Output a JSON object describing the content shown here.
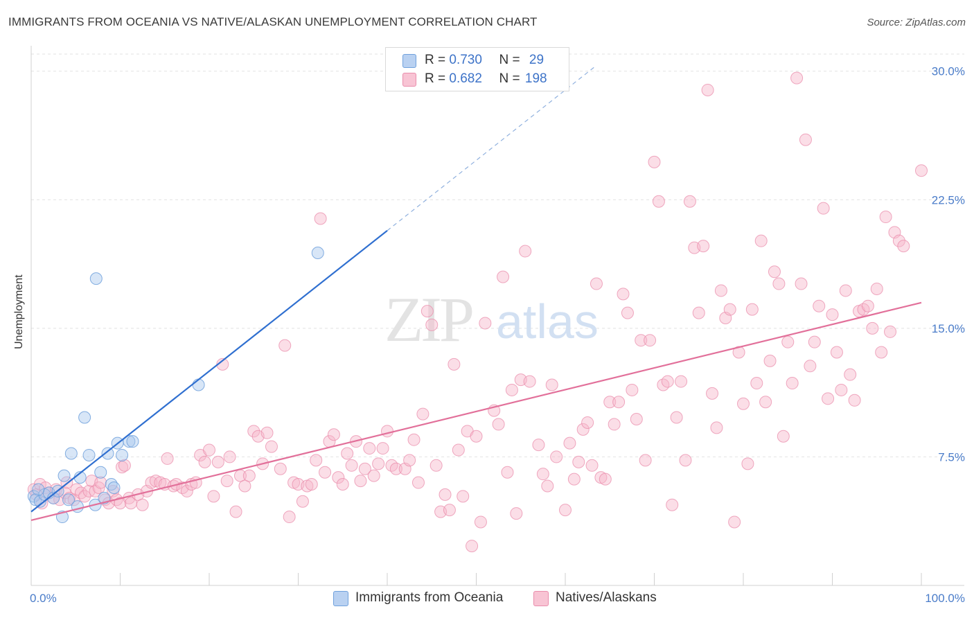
{
  "title": "IMMIGRANTS FROM OCEANIA VS NATIVE/ALASKAN UNEMPLOYMENT CORRELATION CHART",
  "source": "Source: ZipAtlas.com",
  "watermark": {
    "zip": "ZIP",
    "atlas": "atlas"
  },
  "legend": {
    "rows": [
      {
        "r_label": "R =",
        "r_value": "0.730",
        "n_label": "N =",
        "n_value": "29"
      },
      {
        "r_label": "R =",
        "r_value": "0.682",
        "n_label": "N =",
        "n_value": "198"
      }
    ]
  },
  "chart_data": {
    "type": "scatter",
    "title": "IMMIGRANTS FROM OCEANIA VS NATIVE/ALASKAN UNEMPLOYMENT CORRELATION CHART",
    "xlabel": "",
    "ylabel": "Unemployment",
    "xlim": [
      0,
      100
    ],
    "ylim": [
      0,
      31
    ],
    "x_tick_labels": [
      "0.0%",
      "100.0%"
    ],
    "y_ticks": [
      7.5,
      15.0,
      22.5,
      30.0
    ],
    "y_tick_labels": [
      "7.5%",
      "15.0%",
      "22.5%",
      "30.0%"
    ],
    "grid": true,
    "series": [
      {
        "name": "Immigrants from Oceania",
        "color": "#6fa0dc",
        "fill": "#a9c8ee",
        "R": 0.73,
        "N": 29,
        "trendline": {
          "x0": 0,
          "y0": 4.3,
          "x1": 40,
          "y1": 20.7,
          "dashed_to_x": 63.5
        },
        "points": [
          [
            0.3,
            5.2
          ],
          [
            0.5,
            5.0
          ],
          [
            1,
            4.9
          ],
          [
            1.5,
            5.3
          ],
          [
            2,
            5.4
          ],
          [
            2.5,
            5.1
          ],
          [
            3,
            5.5
          ],
          [
            3.5,
            4.0
          ],
          [
            3.7,
            6.4
          ],
          [
            4.2,
            5.0
          ],
          [
            4.5,
            7.7
          ],
          [
            5.2,
            4.6
          ],
          [
            5.5,
            6.3
          ],
          [
            6,
            9.8
          ],
          [
            6.5,
            7.6
          ],
          [
            7.2,
            4.7
          ],
          [
            7.3,
            17.9
          ],
          [
            7.8,
            6.6
          ],
          [
            8.2,
            5.1
          ],
          [
            8.6,
            7.7
          ],
          [
            9,
            5.9
          ],
          [
            9.3,
            5.7
          ],
          [
            9.7,
            8.3
          ],
          [
            10.2,
            7.6
          ],
          [
            11,
            8.4
          ],
          [
            11.4,
            8.4
          ],
          [
            18.8,
            11.7
          ],
          [
            32.2,
            19.4
          ],
          [
            0.8,
            5.6
          ]
        ]
      },
      {
        "name": "Natives/Alaskans",
        "color": "#e98cab",
        "fill": "#f6b6ca",
        "R": 0.682,
        "N": 198,
        "trendline": {
          "x0": 0,
          "y0": 3.8,
          "x1": 100,
          "y1": 16.5
        },
        "points": [
          [
            0.3,
            5.6
          ],
          [
            0.6,
            5.3
          ],
          [
            1,
            5.9
          ],
          [
            1.2,
            4.8
          ],
          [
            1.6,
            5.7
          ],
          [
            2,
            5.4
          ],
          [
            2.5,
            5.1
          ],
          [
            2.8,
            5.6
          ],
          [
            3.2,
            5.0
          ],
          [
            3.8,
            5.4
          ],
          [
            4,
            6.0
          ],
          [
            4.3,
            5.1
          ],
          [
            4.8,
            5.0
          ],
          [
            5.1,
            5.6
          ],
          [
            5.6,
            5.4
          ],
          [
            6,
            5.2
          ],
          [
            6.5,
            5.5
          ],
          [
            6.8,
            6.1
          ],
          [
            7.2,
            5.5
          ],
          [
            7.6,
            5.7
          ],
          [
            7.8,
            6.0
          ],
          [
            8.3,
            5.0
          ],
          [
            8.7,
            4.8
          ],
          [
            9.2,
            5.5
          ],
          [
            9.6,
            5.0
          ],
          [
            10,
            4.8
          ],
          [
            10.2,
            6.9
          ],
          [
            10.5,
            7.0
          ],
          [
            11,
            5.1
          ],
          [
            11.2,
            4.8
          ],
          [
            12,
            5.3
          ],
          [
            12.5,
            4.7
          ],
          [
            13,
            5.5
          ],
          [
            13.5,
            6.0
          ],
          [
            14,
            6.1
          ],
          [
            14.5,
            6.0
          ],
          [
            15,
            5.9
          ],
          [
            15.3,
            7.4
          ],
          [
            16,
            5.8
          ],
          [
            16.3,
            5.9
          ],
          [
            17,
            5.7
          ],
          [
            17.5,
            5.5
          ],
          [
            18,
            5.9
          ],
          [
            18.5,
            6.0
          ],
          [
            19,
            7.6
          ],
          [
            19.5,
            7.2
          ],
          [
            20,
            7.9
          ],
          [
            20.5,
            5.2
          ],
          [
            21,
            7.2
          ],
          [
            21.5,
            12.9
          ],
          [
            22,
            6.1
          ],
          [
            22.3,
            7.5
          ],
          [
            23,
            4.3
          ],
          [
            23.5,
            6.4
          ],
          [
            24,
            5.8
          ],
          [
            24.5,
            6.4
          ],
          [
            25,
            9.0
          ],
          [
            25.5,
            8.7
          ],
          [
            26,
            7.1
          ],
          [
            26.5,
            8.9
          ],
          [
            27,
            8.1
          ],
          [
            28,
            6.8
          ],
          [
            28.5,
            14.0
          ],
          [
            29,
            4.0
          ],
          [
            29.5,
            6.0
          ],
          [
            30,
            5.9
          ],
          [
            30.5,
            4.9
          ],
          [
            31,
            5.8
          ],
          [
            31.5,
            5.9
          ],
          [
            32,
            7.3
          ],
          [
            32.5,
            21.4
          ],
          [
            33,
            6.6
          ],
          [
            33.5,
            8.4
          ],
          [
            34,
            8.8
          ],
          [
            34.5,
            6.3
          ],
          [
            35,
            5.9
          ],
          [
            35.5,
            7.7
          ],
          [
            36,
            7.0
          ],
          [
            36.5,
            8.4
          ],
          [
            37,
            6.1
          ],
          [
            37.5,
            6.8
          ],
          [
            38,
            8.0
          ],
          [
            38.5,
            6.4
          ],
          [
            39,
            7.1
          ],
          [
            39.5,
            8.0
          ],
          [
            40,
            9.0
          ],
          [
            40.5,
            7.0
          ],
          [
            41,
            6.8
          ],
          [
            42,
            6.8
          ],
          [
            42.5,
            7.3
          ],
          [
            43,
            8.5
          ],
          [
            43.5,
            6.0
          ],
          [
            44,
            10.0
          ],
          [
            44.5,
            16.0
          ],
          [
            45,
            15.2
          ],
          [
            45.5,
            7.0
          ],
          [
            46,
            4.3
          ],
          [
            46.5,
            5.3
          ],
          [
            47,
            4.4
          ],
          [
            47.5,
            12.9
          ],
          [
            48,
            7.9
          ],
          [
            48.5,
            5.2
          ],
          [
            49,
            9.0
          ],
          [
            49.5,
            2.3
          ],
          [
            50,
            8.7
          ],
          [
            50.5,
            3.7
          ],
          [
            51,
            15.3
          ],
          [
            52,
            10.2
          ],
          [
            52.5,
            9.4
          ],
          [
            53,
            18.0
          ],
          [
            53.5,
            6.6
          ],
          [
            54,
            11.4
          ],
          [
            54.5,
            4.2
          ],
          [
            55,
            12.0
          ],
          [
            55.5,
            19.5
          ],
          [
            56,
            11.9
          ],
          [
            57,
            8.2
          ],
          [
            57.5,
            6.5
          ],
          [
            58,
            5.8
          ],
          [
            58.5,
            11.7
          ],
          [
            59,
            7.5
          ],
          [
            60,
            4.4
          ],
          [
            60.5,
            8.3
          ],
          [
            61,
            6.2
          ],
          [
            61.5,
            7.2
          ],
          [
            62,
            9.1
          ],
          [
            62.5,
            9.5
          ],
          [
            63,
            7.0
          ],
          [
            63.5,
            17.6
          ],
          [
            64,
            6.3
          ],
          [
            64.5,
            6.2
          ],
          [
            65,
            10.7
          ],
          [
            65.5,
            9.4
          ],
          [
            66,
            10.7
          ],
          [
            66.5,
            17.0
          ],
          [
            67,
            15.9
          ],
          [
            67.5,
            11.4
          ],
          [
            68,
            9.7
          ],
          [
            68.5,
            14.3
          ],
          [
            69,
            7.3
          ],
          [
            69.5,
            14.3
          ],
          [
            70,
            24.7
          ],
          [
            70.5,
            22.4
          ],
          [
            71,
            11.7
          ],
          [
            71.5,
            11.9
          ],
          [
            72,
            4.7
          ],
          [
            72.5,
            9.8
          ],
          [
            73,
            11.9
          ],
          [
            73.5,
            7.3
          ],
          [
            74,
            22.4
          ],
          [
            74.5,
            19.7
          ],
          [
            75,
            15.9
          ],
          [
            75.5,
            19.8
          ],
          [
            76,
            28.9
          ],
          [
            76.5,
            11.2
          ],
          [
            77,
            9.2
          ],
          [
            77.5,
            17.2
          ],
          [
            78,
            15.6
          ],
          [
            78.5,
            16.1
          ],
          [
            79,
            3.7
          ],
          [
            79.5,
            13.6
          ],
          [
            80,
            10.6
          ],
          [
            80.5,
            7.1
          ],
          [
            81,
            16.1
          ],
          [
            81.5,
            11.8
          ],
          [
            82,
            20.1
          ],
          [
            82.5,
            10.7
          ],
          [
            83,
            13.1
          ],
          [
            83.5,
            18.3
          ],
          [
            84,
            17.6
          ],
          [
            84.5,
            8.7
          ],
          [
            85,
            14.2
          ],
          [
            85.5,
            11.8
          ],
          [
            86,
            29.6
          ],
          [
            86.5,
            17.6
          ],
          [
            87,
            26.0
          ],
          [
            87.5,
            12.8
          ],
          [
            88,
            14.2
          ],
          [
            88.5,
            16.3
          ],
          [
            89,
            22.0
          ],
          [
            89.5,
            10.9
          ],
          [
            90,
            15.8
          ],
          [
            90.5,
            13.6
          ],
          [
            91,
            11.4
          ],
          [
            91.5,
            17.2
          ],
          [
            92,
            12.3
          ],
          [
            92.5,
            10.8
          ],
          [
            93,
            16.0
          ],
          [
            93.5,
            16.1
          ],
          [
            94,
            16.3
          ],
          [
            94.5,
            15.0
          ],
          [
            95,
            17.3
          ],
          [
            95.5,
            13.6
          ],
          [
            96,
            21.5
          ],
          [
            96.5,
            14.8
          ],
          [
            97,
            20.6
          ],
          [
            97.5,
            20.1
          ],
          [
            98,
            19.8
          ],
          [
            100,
            24.2
          ]
        ]
      }
    ]
  },
  "bottom_legend": [
    {
      "label": "Immigrants from Oceania"
    },
    {
      "label": "Natives/Alaskans"
    }
  ]
}
